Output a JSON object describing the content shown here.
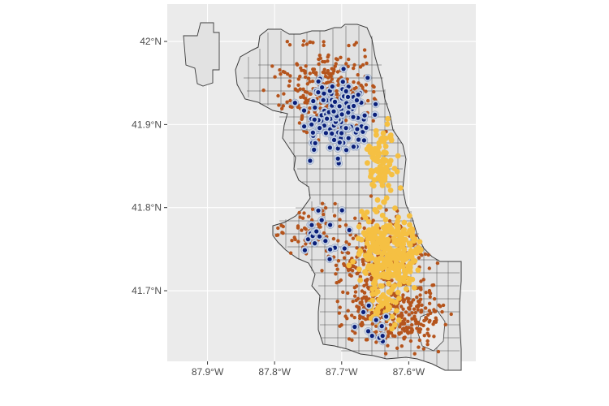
{
  "chart_data": {
    "type": "map",
    "xlabel": "",
    "ylabel": "",
    "xlim": [
      -87.96,
      -87.5
    ],
    "ylim": [
      41.615,
      42.045
    ],
    "x_ticks": [
      {
        "value": -87.9,
        "label": "87.9°W"
      },
      {
        "value": -87.8,
        "label": "87.8°W"
      },
      {
        "value": -87.7,
        "label": "87.7°W"
      },
      {
        "value": -87.6,
        "label": "87.6°W"
      }
    ],
    "y_ticks": [
      {
        "value": 42.0,
        "label": "42°N"
      },
      {
        "value": 41.9,
        "label": "41.9°N"
      },
      {
        "value": 41.8,
        "label": "41.8°N"
      },
      {
        "value": 41.7,
        "label": "41.7°N"
      }
    ],
    "grid": true,
    "colors": {
      "panel": "#ebebeb",
      "grid": "#ffffff",
      "tract_fill": "#e2e2e2",
      "tract_border": "#3c3c3c",
      "orange_points": "#b5541c",
      "yellow_points": "#f5c043",
      "blue_points": "#0a1f7a"
    },
    "series": []
  }
}
